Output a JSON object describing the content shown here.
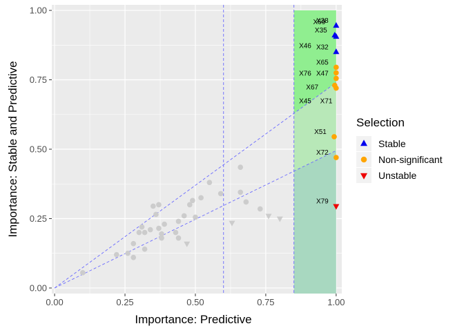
{
  "chart_data": {
    "type": "scatter",
    "xlabel": "Importance: Predictive",
    "ylabel": "Importance: Stable and Predictive",
    "xlim": [
      -0.01,
      1.02
    ],
    "ylim": [
      -0.02,
      1.02
    ],
    "x_ticks": [
      0.0,
      0.25,
      0.5,
      0.75,
      1.0
    ],
    "x_tick_labels": [
      "0.00",
      "0.25",
      "0.50",
      "0.75",
      "1.00"
    ],
    "y_ticks": [
      0.0,
      0.25,
      0.5,
      0.75,
      1.0
    ],
    "y_tick_labels": [
      "0.00",
      "0.25",
      "0.50",
      "0.75",
      "1.00"
    ],
    "grid": true,
    "panel_background": "#ebebeb",
    "grid_color": "#ffffff",
    "reference_lines": {
      "vertical": [
        0.6,
        0.85
      ],
      "diagonal_upper": {
        "from": [
          0,
          0
        ],
        "to": [
          1,
          0.74
        ]
      },
      "diagonal_lower": {
        "from": [
          0,
          0
        ],
        "to": [
          1,
          0.495
        ]
      },
      "color": "#6a6aff"
    },
    "shaded_regions": {
      "x_from": 0.85,
      "x_to": 1.0,
      "colors": {
        "upper_band": "#90ee90",
        "middle_band": "#b8e8b8",
        "lower_band": "#a8d8c0"
      }
    },
    "legend": {
      "title": "Selection",
      "position": "right",
      "entries": [
        {
          "label": "Stable",
          "shape": "triangle-up",
          "color": "#0000ee"
        },
        {
          "label": "Non-significant",
          "shape": "circle",
          "color": "#ffa500"
        },
        {
          "label": "Unstable",
          "shape": "triangle-down",
          "color": "#ee0000"
        }
      ]
    },
    "series": [
      {
        "name": "Stable",
        "shape": "triangle-up",
        "color": "#0000ee",
        "points": [
          {
            "x": 1.0,
            "y": 0.945,
            "label": "X38"
          },
          {
            "x": 0.995,
            "y": 0.91,
            "label": "X35"
          },
          {
            "x": 1.0,
            "y": 0.905,
            "label": ""
          },
          {
            "x": 1.0,
            "y": 0.85,
            "label": "X32"
          }
        ]
      },
      {
        "name": "Non-significant",
        "shape": "circle",
        "color": "#ffa500",
        "points": [
          {
            "x": 1.0,
            "y": 0.795,
            "label": "X65"
          },
          {
            "x": 1.0,
            "y": 0.775,
            "label": ""
          },
          {
            "x": 1.0,
            "y": 0.755,
            "label": "X47"
          },
          {
            "x": 0.995,
            "y": 0.73,
            "label": ""
          },
          {
            "x": 1.0,
            "y": 0.72,
            "label": ""
          },
          {
            "x": 0.993,
            "y": 0.545,
            "label": "X51"
          },
          {
            "x": 1.0,
            "y": 0.47,
            "label": "X72"
          }
        ]
      },
      {
        "name": "Unstable",
        "shape": "triangle-down",
        "color": "#ee0000",
        "points": [
          {
            "x": 1.0,
            "y": 0.295,
            "label": "X79"
          }
        ]
      },
      {
        "name": "",
        "shape": "mixed",
        "color": "#cccccc",
        "points": [
          {
            "x": 0.1,
            "y": 0.055,
            "shape": "circle"
          },
          {
            "x": 0.22,
            "y": 0.12,
            "shape": "circle"
          },
          {
            "x": 0.26,
            "y": 0.125,
            "shape": "circle"
          },
          {
            "x": 0.28,
            "y": 0.11,
            "shape": "circle"
          },
          {
            "x": 0.28,
            "y": 0.16,
            "shape": "circle"
          },
          {
            "x": 0.3,
            "y": 0.2,
            "shape": "circle"
          },
          {
            "x": 0.31,
            "y": 0.22,
            "shape": "circle"
          },
          {
            "x": 0.32,
            "y": 0.14,
            "shape": "circle"
          },
          {
            "x": 0.32,
            "y": 0.2,
            "shape": "circle"
          },
          {
            "x": 0.34,
            "y": 0.21,
            "shape": "circle"
          },
          {
            "x": 0.35,
            "y": 0.295,
            "shape": "circle"
          },
          {
            "x": 0.36,
            "y": 0.265,
            "shape": "circle"
          },
          {
            "x": 0.37,
            "y": 0.3,
            "shape": "circle"
          },
          {
            "x": 0.37,
            "y": 0.215,
            "shape": "circle"
          },
          {
            "x": 0.38,
            "y": 0.18,
            "shape": "circle"
          },
          {
            "x": 0.38,
            "y": 0.195,
            "shape": "circle"
          },
          {
            "x": 0.39,
            "y": 0.23,
            "shape": "circle"
          },
          {
            "x": 0.43,
            "y": 0.2,
            "shape": "circle"
          },
          {
            "x": 0.44,
            "y": 0.18,
            "shape": "circle"
          },
          {
            "x": 0.44,
            "y": 0.24,
            "shape": "circle"
          },
          {
            "x": 0.46,
            "y": 0.26,
            "shape": "circle"
          },
          {
            "x": 0.48,
            "y": 0.3,
            "shape": "circle"
          },
          {
            "x": 0.49,
            "y": 0.315,
            "shape": "circle"
          },
          {
            "x": 0.5,
            "y": 0.255,
            "shape": "circle"
          },
          {
            "x": 0.52,
            "y": 0.325,
            "shape": "circle"
          },
          {
            "x": 0.55,
            "y": 0.38,
            "shape": "circle"
          },
          {
            "x": 0.59,
            "y": 0.34,
            "shape": "circle"
          },
          {
            "x": 0.66,
            "y": 0.435,
            "shape": "circle"
          },
          {
            "x": 0.66,
            "y": 0.345,
            "shape": "circle"
          },
          {
            "x": 0.68,
            "y": 0.31,
            "shape": "circle"
          },
          {
            "x": 0.73,
            "y": 0.285,
            "shape": "circle"
          },
          {
            "x": 0.47,
            "y": 0.16,
            "shape": "triangle-down"
          },
          {
            "x": 0.63,
            "y": 0.235,
            "shape": "triangle-down"
          },
          {
            "x": 0.76,
            "y": 0.26,
            "shape": "triangle-down"
          },
          {
            "x": 0.8,
            "y": 0.25,
            "shape": "triangle-down"
          }
        ]
      }
    ],
    "annotations": [
      {
        "text": "X69",
        "x": 0.94,
        "y": 0.95
      },
      {
        "text": "X46",
        "x": 0.89,
        "y": 0.865
      },
      {
        "text": "X76",
        "x": 0.89,
        "y": 0.765
      },
      {
        "text": "X67",
        "x": 0.915,
        "y": 0.715
      },
      {
        "text": "X45",
        "x": 0.89,
        "y": 0.665
      },
      {
        "text": "X71",
        "x": 0.965,
        "y": 0.665
      }
    ]
  }
}
